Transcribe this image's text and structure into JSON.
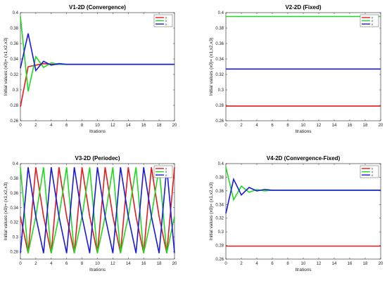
{
  "chart_data": [
    {
      "type": "line",
      "title": "V1-2D (Convergence)",
      "xlabel": "Itrations",
      "ylabel": "Initial values (x0)= (x1,x2,x3)",
      "xlim": [
        0,
        20
      ],
      "ylim": [
        0.26,
        0.4
      ],
      "xticks": [
        0,
        2,
        4,
        6,
        8,
        10,
        12,
        14,
        16,
        18,
        20
      ],
      "yticks": [
        0.26,
        0.28,
        0.3,
        0.32,
        0.34,
        0.36,
        0.38,
        0.4
      ],
      "legend": [
        "x",
        "x",
        "x"
      ],
      "legend_position": "top-right",
      "colors": [
        "#e41a1c",
        "#1fd91f",
        "#1a1ad8"
      ],
      "series": [
        {
          "color": "#e41a1c",
          "x": [
            0,
            1,
            2,
            3,
            4,
            5,
            6,
            7,
            8,
            9,
            10,
            11,
            12,
            13,
            14,
            15,
            16,
            17,
            18,
            19,
            20
          ],
          "y": [
            0.278,
            0.33,
            0.332,
            0.334,
            0.333,
            0.333,
            0.333,
            0.333,
            0.333,
            0.333,
            0.333,
            0.333,
            0.333,
            0.333,
            0.333,
            0.333,
            0.333,
            0.333,
            0.333,
            0.333,
            0.333
          ]
        },
        {
          "color": "#1fd91f",
          "x": [
            0,
            1,
            2,
            3,
            4,
            5,
            6,
            7,
            8,
            9,
            10,
            11,
            12,
            13,
            14,
            15,
            16,
            17,
            18,
            19,
            20
          ],
          "y": [
            0.395,
            0.298,
            0.343,
            0.329,
            0.335,
            0.333,
            0.333,
            0.333,
            0.333,
            0.333,
            0.333,
            0.333,
            0.333,
            0.333,
            0.333,
            0.333,
            0.333,
            0.333,
            0.333,
            0.333,
            0.333
          ]
        },
        {
          "color": "#1a1ad8",
          "x": [
            0,
            1,
            2,
            3,
            4,
            5,
            6,
            7,
            8,
            9,
            10,
            11,
            12,
            13,
            14,
            15,
            16,
            17,
            18,
            19,
            20
          ],
          "y": [
            0.328,
            0.373,
            0.325,
            0.337,
            0.332,
            0.334,
            0.333,
            0.333,
            0.333,
            0.333,
            0.333,
            0.333,
            0.333,
            0.333,
            0.333,
            0.333,
            0.333,
            0.333,
            0.333,
            0.333,
            0.333
          ]
        }
      ]
    },
    {
      "type": "line",
      "title": "V2-2D (Fixed)",
      "xlabel": "Itrations",
      "ylabel": "Initial values (x0)= (x1,x2,x3)",
      "xlim": [
        0,
        20
      ],
      "ylim": [
        0.26,
        0.4
      ],
      "xticks": [
        0,
        2,
        4,
        6,
        8,
        10,
        12,
        14,
        16,
        18,
        20
      ],
      "yticks": [
        0.26,
        0.28,
        0.3,
        0.32,
        0.34,
        0.36,
        0.38,
        0.4
      ],
      "legend": [
        "x",
        "x",
        "x"
      ],
      "legend_position": "top-right",
      "colors": [
        "#e41a1c",
        "#1fd91f",
        "#1a1ad8"
      ],
      "series": [
        {
          "color": "#e41a1c",
          "x": [
            0,
            20
          ],
          "y": [
            0.279,
            0.279
          ]
        },
        {
          "color": "#1fd91f",
          "x": [
            0,
            20
          ],
          "y": [
            0.395,
            0.395
          ]
        },
        {
          "color": "#1a1ad8",
          "x": [
            0,
            20
          ],
          "y": [
            0.327,
            0.327
          ]
        }
      ]
    },
    {
      "type": "line",
      "title": "V3-2D (Periodec)",
      "xlabel": "Itrations",
      "ylabel": "Initial values (x0)= (x1,x2,x3)",
      "xlim": [
        0,
        20
      ],
      "ylim": [
        0.27,
        0.4
      ],
      "xticks": [
        0,
        2,
        4,
        6,
        8,
        10,
        12,
        14,
        16,
        18,
        20
      ],
      "yticks": [
        0.28,
        0.3,
        0.32,
        0.34,
        0.36,
        0.38,
        0.4
      ],
      "legend": [
        "x",
        "x",
        "x"
      ],
      "legend_position": "top-right",
      "colors": [
        "#e41a1c",
        "#1fd91f",
        "#1a1ad8"
      ],
      "series": [
        {
          "color": "#e41a1c",
          "x": [
            0,
            1,
            2,
            3,
            4,
            5,
            6,
            7,
            8,
            9,
            10,
            11,
            12,
            13,
            14,
            15,
            16,
            17,
            18,
            19,
            20
          ],
          "y": [
            0.328,
            0.278,
            0.395,
            0.328,
            0.278,
            0.395,
            0.328,
            0.278,
            0.395,
            0.328,
            0.278,
            0.395,
            0.328,
            0.278,
            0.395,
            0.328,
            0.278,
            0.395,
            0.328,
            0.278,
            0.395
          ]
        },
        {
          "color": "#1fd91f",
          "x": [
            0,
            1,
            2,
            3,
            4,
            5,
            6,
            7,
            8,
            9,
            10,
            11,
            12,
            13,
            14,
            15,
            16,
            17,
            18,
            19,
            20
          ],
          "y": [
            0.395,
            0.278,
            0.328,
            0.395,
            0.278,
            0.328,
            0.395,
            0.278,
            0.328,
            0.395,
            0.278,
            0.328,
            0.395,
            0.278,
            0.328,
            0.395,
            0.278,
            0.328,
            0.395,
            0.278,
            0.328
          ]
        },
        {
          "color": "#1a1ad8",
          "x": [
            0,
            1,
            2,
            3,
            4,
            5,
            6,
            7,
            8,
            9,
            10,
            11,
            12,
            13,
            14,
            15,
            16,
            17,
            18,
            19,
            20
          ],
          "y": [
            0.278,
            0.395,
            0.328,
            0.278,
            0.395,
            0.328,
            0.278,
            0.395,
            0.328,
            0.278,
            0.395,
            0.328,
            0.278,
            0.395,
            0.328,
            0.278,
            0.395,
            0.328,
            0.278,
            0.395,
            0.278
          ]
        }
      ]
    },
    {
      "type": "line",
      "title": "V4-2D (Convergence-Fixed)",
      "xlabel": "Itrations",
      "ylabel": "Initial values (x0)= (x1,x2,x3)",
      "xlim": [
        0,
        20
      ],
      "ylim": [
        0.26,
        0.4
      ],
      "xticks": [
        0,
        2,
        4,
        6,
        8,
        10,
        12,
        14,
        16,
        18,
        20
      ],
      "yticks": [
        0.26,
        0.28,
        0.3,
        0.32,
        0.34,
        0.36,
        0.38,
        0.4
      ],
      "legend": [
        "x",
        "x",
        "x"
      ],
      "legend_position": "top-right",
      "colors": [
        "#e41a1c",
        "#1fd91f",
        "#1a1ad8"
      ],
      "series": [
        {
          "color": "#e41a1c",
          "x": [
            0,
            20
          ],
          "y": [
            0.279,
            0.279
          ]
        },
        {
          "color": "#1fd91f",
          "x": [
            0,
            1,
            2,
            3,
            4,
            5,
            6,
            7,
            8,
            9,
            10,
            11,
            12,
            13,
            14,
            15,
            16,
            17,
            18,
            19,
            20
          ],
          "y": [
            0.395,
            0.347,
            0.367,
            0.358,
            0.362,
            0.36,
            0.361,
            0.361,
            0.361,
            0.361,
            0.361,
            0.361,
            0.361,
            0.361,
            0.361,
            0.361,
            0.361,
            0.361,
            0.361,
            0.361,
            0.361
          ]
        },
        {
          "color": "#1a1ad8",
          "x": [
            0,
            1,
            2,
            3,
            4,
            5,
            6,
            7,
            8,
            9,
            10,
            11,
            12,
            13,
            14,
            15,
            16,
            17,
            18,
            19,
            20
          ],
          "y": [
            0.327,
            0.377,
            0.354,
            0.365,
            0.36,
            0.362,
            0.361,
            0.361,
            0.361,
            0.361,
            0.361,
            0.361,
            0.361,
            0.361,
            0.361,
            0.361,
            0.361,
            0.361,
            0.361,
            0.361,
            0.361
          ]
        }
      ]
    }
  ]
}
